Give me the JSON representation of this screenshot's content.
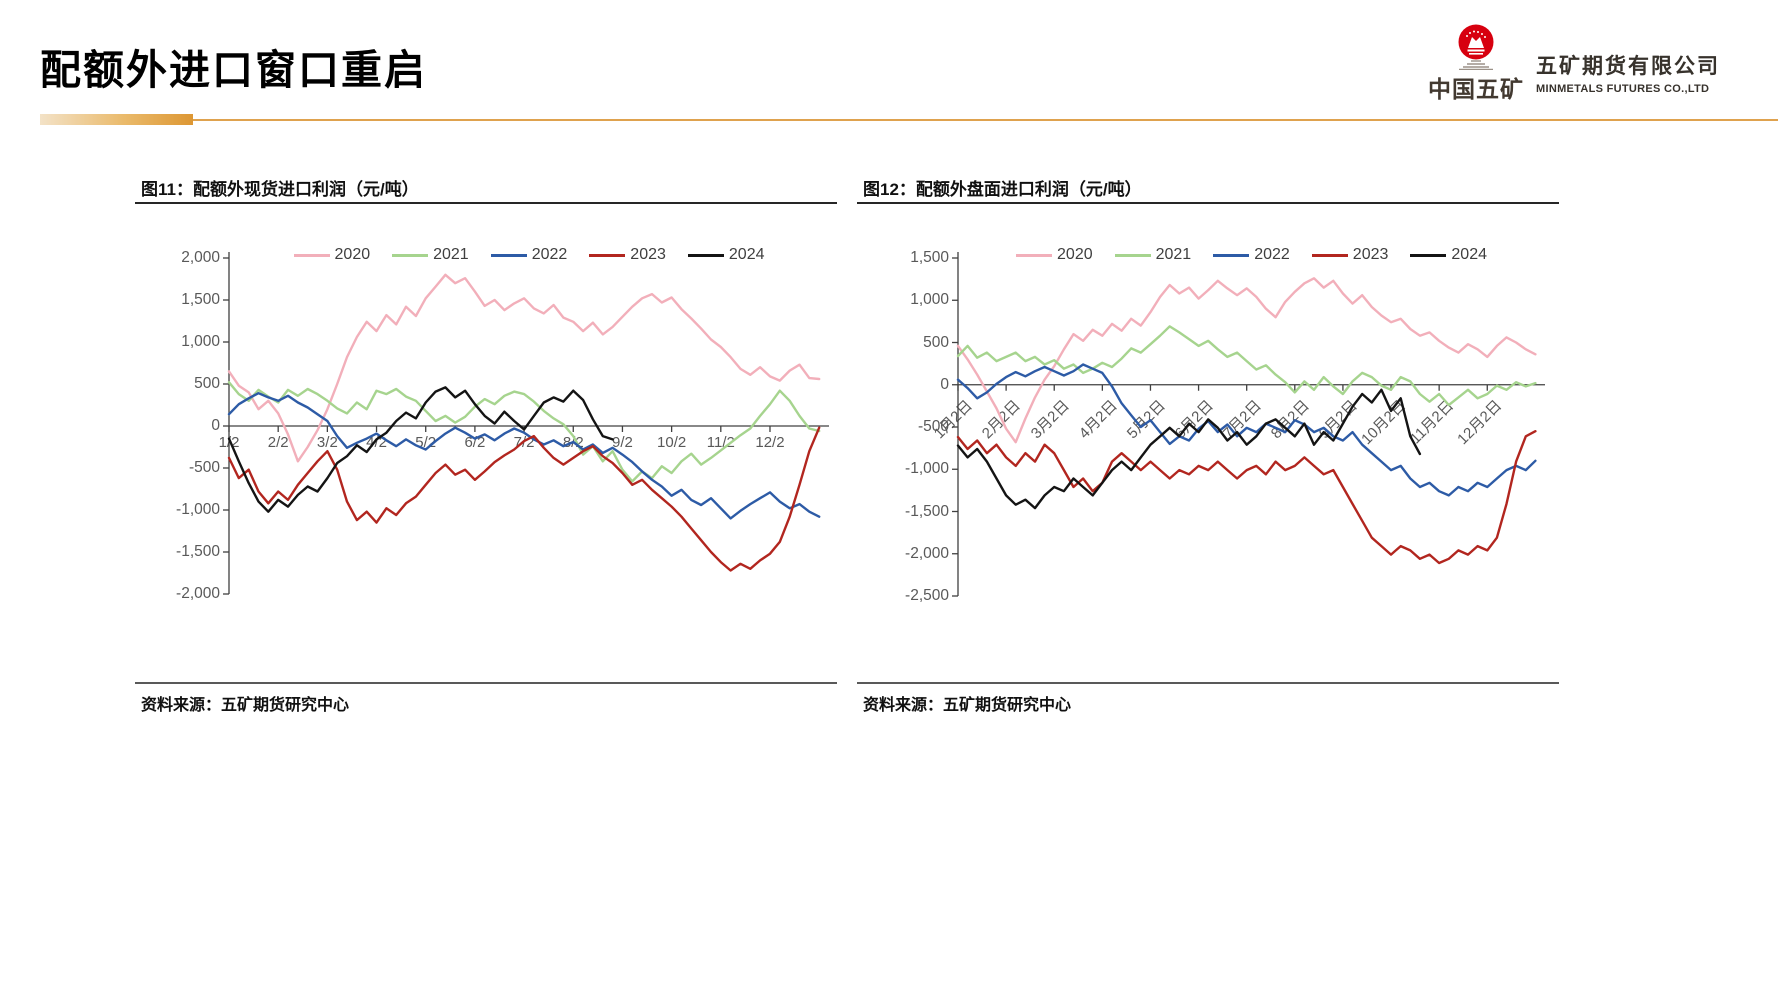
{
  "page": {
    "title": "配额外进口窗口重启",
    "logo": {
      "brand_cn": "中国五矿",
      "company_cn": "五矿期货有限公司",
      "company_en": "MINMETALS FUTURES CO.,LTD"
    },
    "accent_color": "#dd9733"
  },
  "chart_data": [
    {
      "type": "line",
      "title": "图11：配额外现货进口利润（元/吨）",
      "source": "资料来源：五矿期货研究中心",
      "unit": "元/吨",
      "grid": false,
      "legend_position": "top",
      "axis_color": "#404040",
      "label_color": "#595959",
      "ylim": [
        -2000,
        2000
      ],
      "ytick_values": [
        2000,
        1500,
        1000,
        500,
        0,
        -500,
        -1000,
        -1500,
        -2000
      ],
      "yticks": [
        "2,000",
        "1,500",
        "1,000",
        "500",
        "0",
        "-500",
        "-1,000",
        "-1,500",
        "-2,000"
      ],
      "xlim": [
        1,
        13.2
      ],
      "x_unit": "month (day 2 of each month)",
      "xtick_values": [
        1,
        2,
        3,
        4,
        5,
        6,
        7,
        8,
        9,
        10,
        11,
        12
      ],
      "xtick_labels": [
        "1/2",
        "2/2",
        "3/2",
        "4/2",
        "5/2",
        "6/2",
        "7/2",
        "8/2",
        "9/2",
        "10/2",
        "11/2",
        "12/2"
      ],
      "xtick_rotation": 0,
      "series": [
        {
          "name": "2020",
          "color": "#F2AFBA",
          "x_start": 1,
          "x_step": 0.2,
          "y": [
            650,
            480,
            400,
            200,
            300,
            150,
            -100,
            -420,
            -250,
            -50,
            200,
            500,
            820,
            1060,
            1240,
            1130,
            1320,
            1210,
            1420,
            1310,
            1520,
            1660,
            1800,
            1700,
            1760,
            1600,
            1430,
            1500,
            1380,
            1460,
            1520,
            1400,
            1340,
            1440,
            1290,
            1240,
            1130,
            1230,
            1090,
            1180,
            1300,
            1420,
            1520,
            1570,
            1470,
            1530,
            1390,
            1280,
            1160,
            1030,
            940,
            820,
            680,
            610,
            700,
            590,
            540,
            660,
            730,
            570,
            560
          ]
        },
        {
          "name": "2021",
          "color": "#A6D48E",
          "x_start": 1,
          "x_step": 0.2,
          "y": [
            520,
            380,
            300,
            430,
            350,
            280,
            430,
            360,
            440,
            380,
            300,
            210,
            150,
            280,
            200,
            420,
            380,
            440,
            350,
            300,
            180,
            60,
            120,
            40,
            110,
            230,
            320,
            260,
            360,
            410,
            380,
            290,
            180,
            90,
            20,
            -120,
            -340,
            -240,
            -420,
            -300,
            -520,
            -660,
            -540,
            -620,
            -480,
            -560,
            -420,
            -330,
            -460,
            -380,
            -290,
            -200,
            -110,
            -30,
            120,
            260,
            420,
            300,
            120,
            -30,
            -60
          ]
        },
        {
          "name": "2022",
          "color": "#2D5BA6",
          "x_start": 1,
          "x_step": 0.2,
          "y": [
            140,
            260,
            330,
            390,
            340,
            300,
            360,
            280,
            220,
            140,
            60,
            -120,
            -260,
            -200,
            -150,
            -90,
            -170,
            -240,
            -160,
            -230,
            -280,
            -180,
            -90,
            -20,
            -80,
            -150,
            -100,
            -170,
            -90,
            -30,
            -80,
            -160,
            -220,
            -170,
            -240,
            -190,
            -280,
            -220,
            -320,
            -260,
            -340,
            -430,
            -540,
            -640,
            -720,
            -830,
            -760,
            -880,
            -940,
            -860,
            -980,
            -1100,
            -1010,
            -930,
            -860,
            -790,
            -900,
            -980,
            -930,
            -1020,
            -1080
          ]
        },
        {
          "name": "2023",
          "color": "#B2261F",
          "x_start": 1,
          "x_step": 0.2,
          "y": [
            -380,
            -620,
            -520,
            -780,
            -920,
            -780,
            -880,
            -700,
            -560,
            -420,
            -300,
            -520,
            -900,
            -1120,
            -1020,
            -1150,
            -980,
            -1060,
            -920,
            -840,
            -700,
            -560,
            -460,
            -580,
            -520,
            -640,
            -540,
            -430,
            -350,
            -280,
            -180,
            -120,
            -260,
            -380,
            -460,
            -380,
            -300,
            -240,
            -360,
            -440,
            -560,
            -700,
            -640,
            -760,
            -860,
            -960,
            -1080,
            -1220,
            -1360,
            -1500,
            -1620,
            -1720,
            -1640,
            -1700,
            -1600,
            -1520,
            -1380,
            -1080,
            -700,
            -300,
            -20
          ]
        },
        {
          "name": "2024",
          "color": "#141414",
          "x_start": 1,
          "x_step": 0.2,
          "y": [
            -150,
            -420,
            -680,
            -900,
            -1020,
            -880,
            -960,
            -820,
            -720,
            -780,
            -620,
            -440,
            -360,
            -230,
            -310,
            -160,
            -80,
            60,
            160,
            90,
            280,
            410,
            460,
            340,
            420,
            260,
            120,
            30,
            170,
            60,
            -40,
            120,
            280,
            340,
            290,
            420,
            310,
            80,
            -120,
            -160
          ]
        }
      ]
    },
    {
      "type": "line",
      "title": "图12：配额外盘面进口利润（元/吨）",
      "source": "资料来源：五矿期货研究中心",
      "unit": "元/吨",
      "grid": false,
      "legend_position": "top",
      "axis_color": "#404040",
      "label_color": "#595959",
      "ylim": [
        -2500,
        1500
      ],
      "ytick_values": [
        1500,
        1000,
        500,
        0,
        -500,
        -1000,
        -1500,
        -2000,
        -2500
      ],
      "yticks": [
        "1,500",
        "1,000",
        "500",
        "0",
        "-500",
        "-1,000",
        "-1,500",
        "-2,000",
        "-2,500"
      ],
      "xlim": [
        1,
        13.2
      ],
      "x_unit": "month (day 2 of each month)",
      "xtick_values": [
        1,
        2,
        3,
        4,
        5,
        6,
        7,
        8,
        9,
        10,
        11,
        12
      ],
      "xtick_labels": [
        "1月2日",
        "2月2日",
        "3月2日",
        "4月2日",
        "5月2日",
        "6月2日",
        "7月2日",
        "8月2日",
        "9月2日",
        "10月2日",
        "11月2日",
        "12月2日"
      ],
      "xtick_rotation": -45,
      "series": [
        {
          "name": "2020",
          "color": "#F2AFBA",
          "x_start": 1,
          "x_step": 0.2,
          "y": [
            460,
            300,
            120,
            -80,
            -280,
            -520,
            -680,
            -400,
            -150,
            60,
            220,
            420,
            600,
            520,
            650,
            580,
            720,
            640,
            780,
            700,
            860,
            1040,
            1180,
            1080,
            1150,
            1020,
            1120,
            1230,
            1140,
            1060,
            1140,
            1040,
            900,
            800,
            980,
            1100,
            1200,
            1260,
            1150,
            1230,
            1080,
            960,
            1060,
            920,
            820,
            740,
            780,
            660,
            580,
            620,
            520,
            440,
            380,
            480,
            420,
            330,
            460,
            560,
            500,
            420,
            360
          ]
        },
        {
          "name": "2021",
          "color": "#A6D48E",
          "x_start": 1,
          "x_step": 0.2,
          "y": [
            340,
            460,
            320,
            380,
            280,
            330,
            380,
            280,
            330,
            240,
            290,
            190,
            240,
            140,
            190,
            260,
            210,
            310,
            430,
            380,
            480,
            580,
            690,
            620,
            540,
            460,
            520,
            420,
            330,
            380,
            280,
            180,
            230,
            120,
            30,
            -90,
            40,
            -60,
            90,
            -20,
            -110,
            40,
            140,
            90,
            -10,
            -60,
            90,
            40,
            -110,
            -200,
            -110,
            -240,
            -150,
            -60,
            -160,
            -110,
            -10,
            -60,
            30,
            -20,
            20
          ]
        },
        {
          "name": "2022",
          "color": "#2D5BA6",
          "x_start": 1,
          "x_step": 0.2,
          "y": [
            60,
            -40,
            -160,
            -90,
            10,
            90,
            150,
            100,
            160,
            210,
            160,
            110,
            160,
            240,
            190,
            140,
            -20,
            -220,
            -360,
            -500,
            -420,
            -560,
            -700,
            -610,
            -660,
            -520,
            -430,
            -560,
            -470,
            -610,
            -510,
            -560,
            -460,
            -510,
            -560,
            -420,
            -470,
            -560,
            -510,
            -610,
            -660,
            -560,
            -710,
            -810,
            -910,
            -1010,
            -960,
            -1110,
            -1210,
            -1160,
            -1260,
            -1310,
            -1210,
            -1260,
            -1160,
            -1210,
            -1110,
            -1010,
            -960,
            -1010,
            -900
          ]
        },
        {
          "name": "2023",
          "color": "#B2261F",
          "x_start": 1,
          "x_step": 0.2,
          "y": [
            -620,
            -760,
            -660,
            -810,
            -710,
            -860,
            -960,
            -810,
            -910,
            -710,
            -810,
            -1010,
            -1210,
            -1110,
            -1260,
            -1160,
            -910,
            -810,
            -910,
            -1010,
            -910,
            -1010,
            -1110,
            -1010,
            -1060,
            -960,
            -1010,
            -910,
            -1010,
            -1110,
            -1010,
            -960,
            -1060,
            -910,
            -1010,
            -960,
            -860,
            -960,
            -1060,
            -1010,
            -1210,
            -1410,
            -1610,
            -1810,
            -1910,
            -2010,
            -1910,
            -1960,
            -2060,
            -2010,
            -2110,
            -2060,
            -1960,
            -2010,
            -1910,
            -1960,
            -1810,
            -1410,
            -910,
            -610,
            -550
          ]
        },
        {
          "name": "2024",
          "color": "#141414",
          "x_start": 1,
          "x_step": 0.2,
          "y": [
            -720,
            -860,
            -760,
            -910,
            -1110,
            -1310,
            -1420,
            -1360,
            -1460,
            -1310,
            -1210,
            -1260,
            -1110,
            -1210,
            -1310,
            -1160,
            -1010,
            -910,
            -1010,
            -860,
            -710,
            -610,
            -510,
            -610,
            -460,
            -560,
            -410,
            -510,
            -660,
            -560,
            -710,
            -610,
            -460,
            -410,
            -510,
            -610,
            -460,
            -710,
            -560,
            -660,
            -460,
            -260,
            -110,
            -210,
            -60,
            -310,
            -160,
            -610,
            -820
          ]
        }
      ]
    }
  ]
}
